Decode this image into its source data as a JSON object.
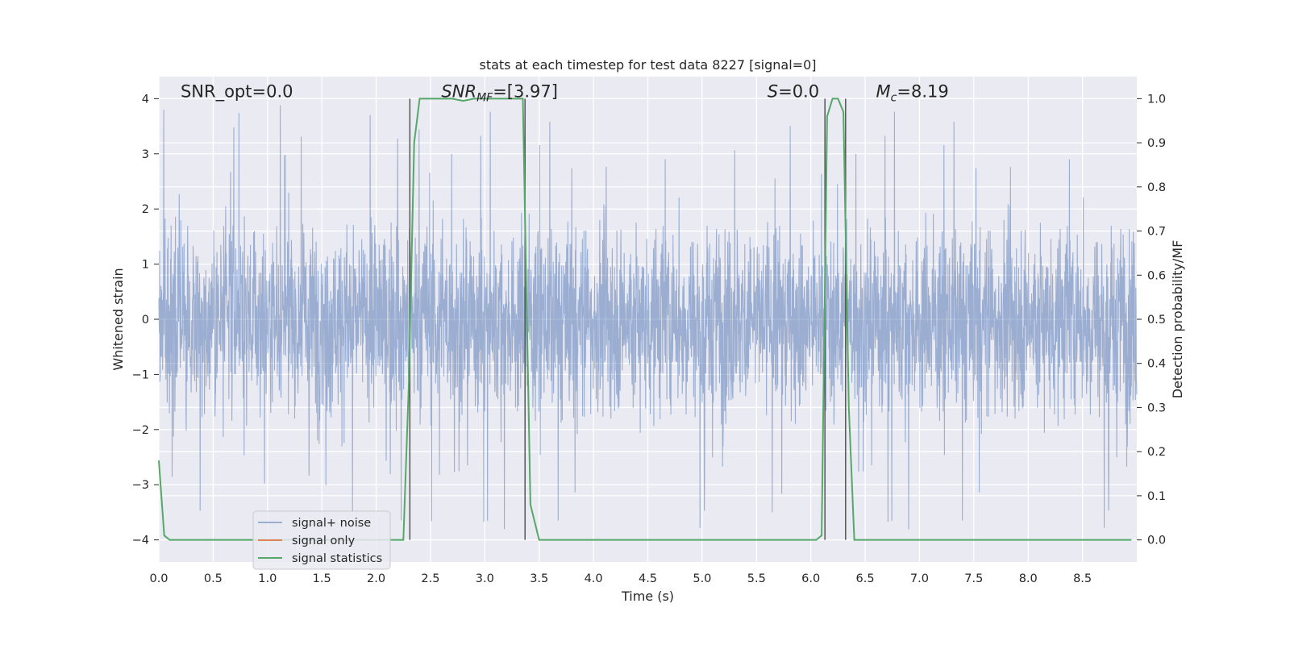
{
  "chart_data": {
    "type": "line",
    "title": "stats at each timestep for test data 8227 [signal=0]",
    "xlabel": "Time (s)",
    "ylabel": "Whitened strain",
    "ylabel_right": "Detection probability/MF",
    "xlim": [
      0,
      9.0
    ],
    "ylim": [
      -4.4,
      4.4
    ],
    "ylim_right": [
      -0.05,
      1.05
    ],
    "x_ticks": [
      0.0,
      0.5,
      1.0,
      1.5,
      2.0,
      2.5,
      3.0,
      3.5,
      4.0,
      4.5,
      5.0,
      5.5,
      6.0,
      6.5,
      7.0,
      7.5,
      8.0,
      8.5
    ],
    "x_tick_labels": [
      "0.0",
      "0.5",
      "1.0",
      "1.5",
      "2.0",
      "2.5",
      "3.0",
      "3.5",
      "4.0",
      "4.5",
      "5.0",
      "5.5",
      "6.0",
      "6.5",
      "7.0",
      "7.5",
      "8.0",
      "8.5"
    ],
    "y_ticks": [
      -4,
      -3,
      -2,
      -1,
      0,
      1,
      2,
      3,
      4
    ],
    "y_tick_labels": [
      "−4",
      "−3",
      "−2",
      "−1",
      "0",
      "1",
      "2",
      "3",
      "4"
    ],
    "y2_ticks": [
      0.0,
      0.1,
      0.2,
      0.3,
      0.4,
      0.5,
      0.6,
      0.7,
      0.8,
      0.9,
      1.0
    ],
    "y2_tick_labels": [
      "0.0",
      "0.1",
      "0.2",
      "0.3",
      "0.4",
      "0.5",
      "0.6",
      "0.7",
      "0.8",
      "0.9",
      "1.0"
    ],
    "grid": true,
    "background": "#eaeaf2",
    "annotations": [
      {
        "text": "SNR_opt=0.0",
        "x": 0.2,
        "y": 4.1,
        "italic_prefix": ""
      },
      {
        "text": "SNR",
        "sub": "MF",
        "suffix": "=[3.97]",
        "x": 2.6,
        "y": 4.1
      },
      {
        "text": "S",
        "suffix": "=0.0",
        "x": 5.6,
        "y": 4.1
      },
      {
        "text": "M",
        "sub": "c",
        "suffix": "=8.19",
        "x": 6.6,
        "y": 4.1
      }
    ],
    "series": [
      {
        "name": "signal+ noise",
        "color": "#4c72b0",
        "alpha": 0.5,
        "axis": "left",
        "style": "noise",
        "description_values": {
          "x_start": 0.0,
          "x_end": 9.0,
          "core_amplitude": 1.6,
          "peak_max": 4.0,
          "peak_min": -4.0
        }
      },
      {
        "name": "signal only",
        "color": "#dd8452",
        "axis": "left",
        "x": [],
        "y": []
      },
      {
        "name": "signal statistics",
        "color": "#55a868",
        "axis": "right",
        "x": [
          0.0,
          0.05,
          0.1,
          0.15,
          2.25,
          2.3,
          2.35,
          2.4,
          2.5,
          2.7,
          2.8,
          2.9,
          3.0,
          3.1,
          3.35,
          3.38,
          3.42,
          3.5,
          6.05,
          6.1,
          6.15,
          6.2,
          6.25,
          6.3,
          6.35,
          6.4,
          6.45,
          8.95
        ],
        "y": [
          0.18,
          0.01,
          0.0,
          0.0,
          0.0,
          0.35,
          0.9,
          1.0,
          1.0,
          1.0,
          0.995,
          1.0,
          1.0,
          1.0,
          1.0,
          0.6,
          0.08,
          0.0,
          0.0,
          0.01,
          0.96,
          1.0,
          1.0,
          0.97,
          0.3,
          0.0,
          0.0,
          0.0
        ]
      }
    ],
    "vertical_lines": [
      2.31,
      3.37,
      6.13,
      6.32
    ],
    "vertical_line_range": [
      -4,
      4
    ],
    "vertical_line_color": "#555555",
    "legend": {
      "placement": "lower-left",
      "entries": [
        "signal+ noise",
        "signal only",
        "signal statistics"
      ]
    }
  }
}
